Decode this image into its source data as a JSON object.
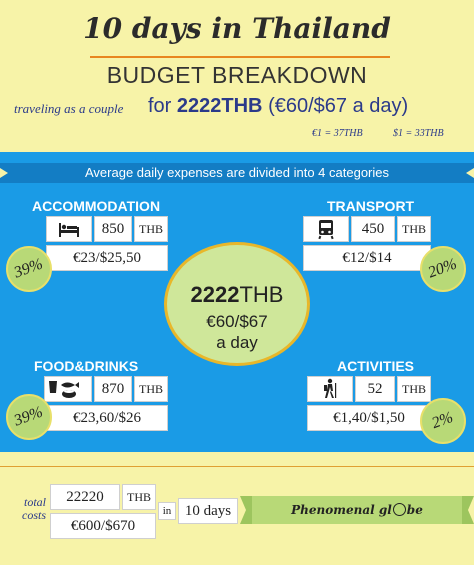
{
  "header": {
    "title": "10 days in Thailand",
    "subtitle": "BUDGET BREAKDOWN",
    "tagline": "traveling as a couple",
    "headline_prefix": "for ",
    "headline_amount": "2222THB",
    "headline_suffix": " (€60/$67 a day)",
    "rate_eur": "€1 = 37THB",
    "rate_usd": "$1 = 33THB"
  },
  "banner": "Average daily expenses are divided into 4 categories",
  "categories": [
    {
      "label": "ACCOMMODATION",
      "icon": "bed-icon",
      "amount": "850",
      "unit": "THB",
      "converted": "€23/$25,50",
      "percent": "39%"
    },
    {
      "label": "TRANSPORT",
      "icon": "train-icon",
      "amount": "450",
      "unit": "THB",
      "converted": "€12/$14",
      "percent": "20%"
    },
    {
      "label": "FOOD&DRINKS",
      "icon": "food-icon",
      "amount": "870",
      "unit": "THB",
      "converted": "€23,60/$26",
      "percent": "39%"
    },
    {
      "label": "ACTIVITIES",
      "icon": "hiker-icon",
      "amount": "52",
      "unit": "THB",
      "converted": "€1,40/$1,50",
      "percent": "2%"
    }
  ],
  "center": {
    "amount": "2222",
    "unit": "THB",
    "converted": "€60/$67",
    "per": "a day"
  },
  "footer": {
    "label_line1": "total",
    "label_line2": "costs",
    "total_amount": "22220",
    "total_unit": "THB",
    "in": "in",
    "duration": "10 days",
    "total_converted": "€600/$670",
    "brand_part1": "Phenomenal gl",
    "brand_part2": "be"
  },
  "colors": {
    "background": "#f7f3a8",
    "blue": "#1a9be6",
    "green": "#b8d977",
    "accent": "#e8861f",
    "text_blue": "#2b3a8a"
  }
}
